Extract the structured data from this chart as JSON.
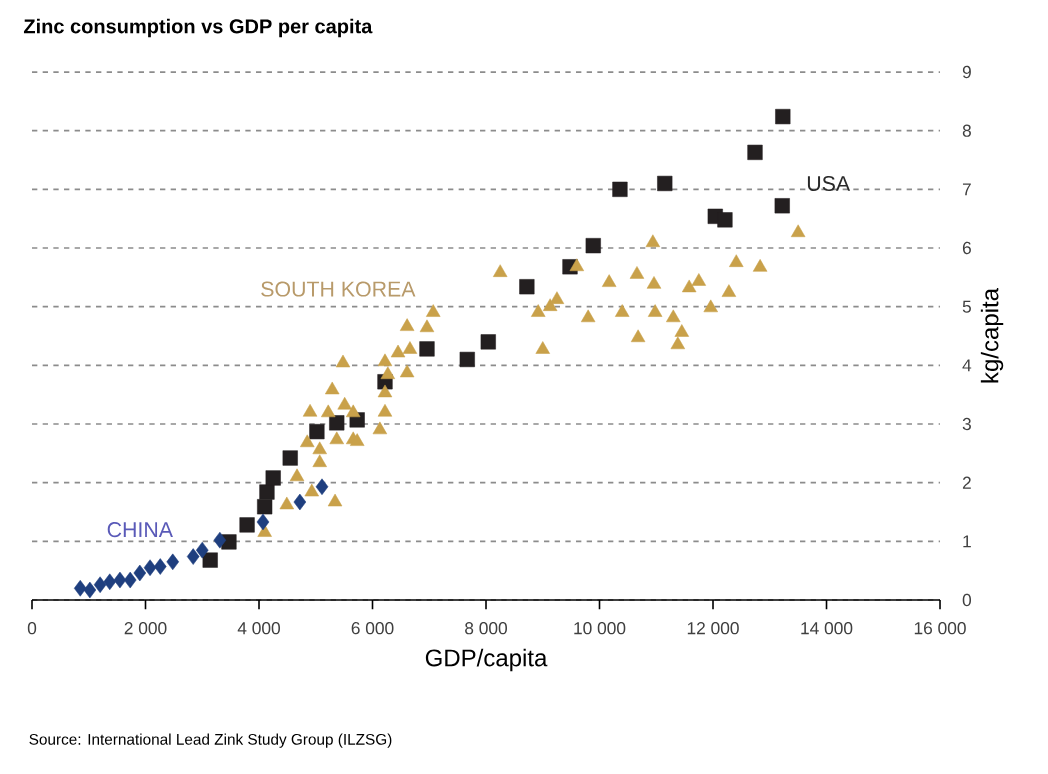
{
  "chart_data": {
    "type": "scatter",
    "title": "Zinc consumption vs GDP per capita",
    "xlabel": "GDP/capita",
    "ylabel": "kg/capita",
    "annotations": [
      "Source: International Lead Zink Study Group (ILZSG)"
    ],
    "xlim": [
      0,
      16000
    ],
    "ylim": [
      0,
      9
    ],
    "xticks": [
      0,
      {
        "value": 2000,
        "label": "2 000"
      },
      {
        "value": 4000,
        "label": "4 000"
      },
      {
        "value": 6000,
        "label": "6 000"
      },
      {
        "value": 8000,
        "label": "8 000"
      },
      {
        "value": 10000,
        "label": "10 000"
      },
      {
        "value": 12000,
        "label": "12 000"
      },
      {
        "value": 14000,
        "label": "14 000"
      },
      {
        "value": 16000,
        "label": "16 000"
      }
    ],
    "yticks": [
      0,
      1,
      2,
      3,
      4,
      5,
      6,
      7,
      8,
      9
    ],
    "grid": "y",
    "series": [
      {
        "name": "CHINA",
        "color": "#1f3f7f",
        "marker": "diamond",
        "x": [
          850,
          1020,
          1200,
          1370,
          1550,
          1730,
          1900,
          2080,
          2260,
          2480,
          2840,
          3000,
          3310,
          4070,
          4720,
          5110
        ],
        "values": [
          0.2,
          0.17,
          0.26,
          0.31,
          0.34,
          0.34,
          0.46,
          0.55,
          0.57,
          0.65,
          0.74,
          0.85,
          1.02,
          1.33,
          1.67,
          1.93
        ]
      },
      {
        "name": "SOUTH KOREA",
        "color": "#c9a14a",
        "marker": "triangle",
        "x": [
          4100,
          4490,
          4670,
          4930,
          5340,
          5070,
          5370,
          5660,
          4900,
          5290,
          5480,
          5220,
          5510,
          5660,
          4850,
          5070,
          5730,
          6130,
          6220,
          6220,
          6270,
          6220,
          6610,
          6450,
          6660,
          6610,
          6960,
          7070,
          8250,
          8920,
          9130,
          9250,
          9000,
          9600,
          9800,
          10170,
          10400,
          10660,
          10680,
          10940,
          10960,
          10980,
          11300,
          11450,
          11380,
          11580,
          11750,
          11960,
          12280,
          12410,
          12830,
          13500
        ],
        "values": [
          1.15,
          1.62,
          2.1,
          1.84,
          1.67,
          2.56,
          2.73,
          2.73,
          3.2,
          3.58,
          4.04,
          3.19,
          3.32,
          3.19,
          2.68,
          2.34,
          2.7,
          2.9,
          3.2,
          3.53,
          3.84,
          4.06,
          3.87,
          4.21,
          4.27,
          4.66,
          4.64,
          4.9,
          5.58,
          4.9,
          5.0,
          5.12,
          4.27,
          5.68,
          4.81,
          5.41,
          4.9,
          5.55,
          4.47,
          6.09,
          5.38,
          4.9,
          4.81,
          4.56,
          4.35,
          5.32,
          5.43,
          4.98,
          5.24,
          5.75,
          5.67,
          6.26
        ]
      },
      {
        "name": "USA",
        "color": "#231f20",
        "marker": "square",
        "x": [
          3140,
          3470,
          3790,
          4100,
          4140,
          4250,
          4550,
          5020,
          5370,
          5730,
          6220,
          6960,
          7670,
          8040,
          8720,
          9480,
          9890,
          10360,
          11150,
          12040,
          12210,
          12740,
          13230,
          13220
        ],
        "values": [
          0.68,
          0.99,
          1.28,
          1.59,
          1.84,
          2.08,
          2.42,
          2.87,
          3.02,
          3.07,
          3.72,
          4.28,
          4.1,
          4.4,
          5.34,
          5.68,
          6.04,
          7.0,
          7.1,
          6.54,
          6.48,
          7.63,
          8.24,
          6.72
        ]
      }
    ]
  }
}
